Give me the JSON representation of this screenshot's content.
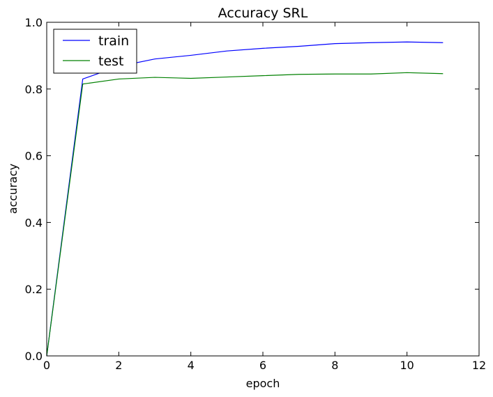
{
  "chart_data": {
    "type": "line",
    "title": "Accuracy SRL",
    "xlabel": "epoch",
    "ylabel": "accuracy",
    "xlim": [
      0,
      12
    ],
    "ylim": [
      0.0,
      1.0
    ],
    "xticks": [
      0,
      2,
      4,
      6,
      8,
      10,
      12
    ],
    "xtick_labels": [
      "0",
      "2",
      "4",
      "6",
      "8",
      "10",
      "12"
    ],
    "yticks": [
      0.0,
      0.2,
      0.4,
      0.6,
      0.8,
      1.0
    ],
    "ytick_labels": [
      "0.0",
      "0.2",
      "0.4",
      "0.6",
      "0.8",
      "1.0"
    ],
    "grid": false,
    "legend_position": "top-left",
    "x": [
      0,
      1,
      2,
      3,
      4,
      5,
      6,
      7,
      8,
      9,
      10,
      11
    ],
    "series": [
      {
        "name": "train",
        "color": "#0000ff",
        "values": [
          0.0,
          0.83,
          0.868,
          0.89,
          0.901,
          0.914,
          0.922,
          0.928,
          0.936,
          0.939,
          0.941,
          0.939
        ]
      },
      {
        "name": "test",
        "color": "#008000",
        "values": [
          0.0,
          0.815,
          0.83,
          0.835,
          0.832,
          0.836,
          0.84,
          0.844,
          0.845,
          0.845,
          0.849,
          0.846
        ]
      }
    ]
  }
}
